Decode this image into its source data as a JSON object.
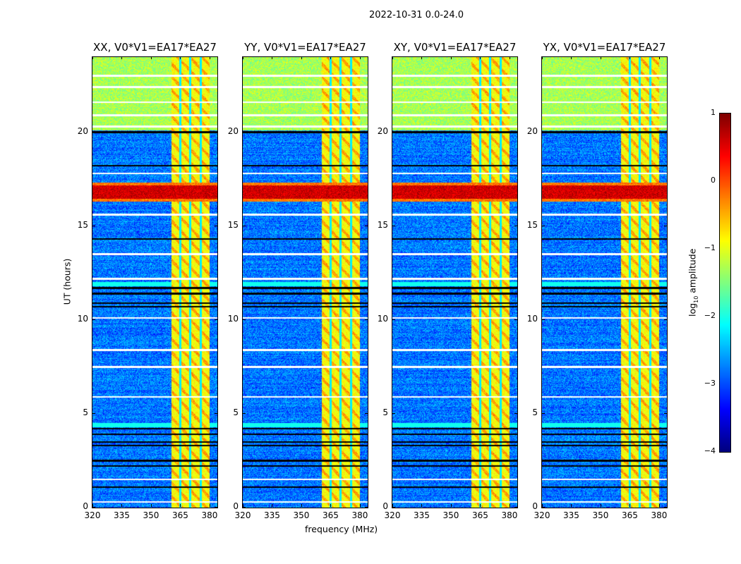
{
  "chart_data": {
    "type": "heatmap",
    "suptitle": "2022-10-31 0.0-24.0",
    "xlabel": "frequency (MHz)",
    "ylabel": "UT (hours)",
    "xlim": [
      320,
      384
    ],
    "ylim": [
      0,
      24
    ],
    "xticks": [
      320,
      335,
      350,
      365,
      380
    ],
    "yticks": [
      0,
      5,
      10,
      15,
      20
    ],
    "panels": [
      {
        "title": "XX, V0*V1=EA17*EA27"
      },
      {
        "title": "YY, V0*V1=EA17*EA27"
      },
      {
        "title": "XY, V0*V1=EA17*EA27"
      },
      {
        "title": "YX, V0*V1=EA17*EA27"
      }
    ],
    "colorbar": {
      "label_prefix": "log",
      "label_sub": "10",
      "label_suffix": " amplitude",
      "range": [
        -4,
        1
      ],
      "ticks": [
        "1",
        "0",
        "−1",
        "−2",
        "−3",
        "−4"
      ],
      "colormap": "jet"
    },
    "features": {
      "background_log_amp": -2.8,
      "band": {
        "freq": [
          360.5,
          380
        ],
        "log_amp": -0.9,
        "gaps_mhz": [
          365,
          370,
          375.5
        ]
      },
      "bright_time_range": {
        "ut": [
          20.1,
          24
        ],
        "log_amp": -1.3
      },
      "rfi_time_range": {
        "ut": [
          16.3,
          17.3
        ],
        "log_amp": 0.6
      },
      "flagged_white_ut": [
        23.0,
        22.4,
        21.6,
        20.9,
        20.3,
        17.8,
        15.6,
        13.5,
        12.2,
        10.1,
        8.4,
        7.5,
        5.9,
        1.5,
        0.3
      ],
      "black_ut": [
        20.0,
        18.2,
        14.3,
        11.7,
        11.4,
        10.9,
        10.7,
        4.2,
        3.9,
        3.5,
        3.3,
        2.5,
        2.2,
        1.1
      ],
      "cyan_ut": [
        [
          11.8,
          12.0
        ],
        [
          4.3,
          4.5
        ]
      ]
    }
  }
}
